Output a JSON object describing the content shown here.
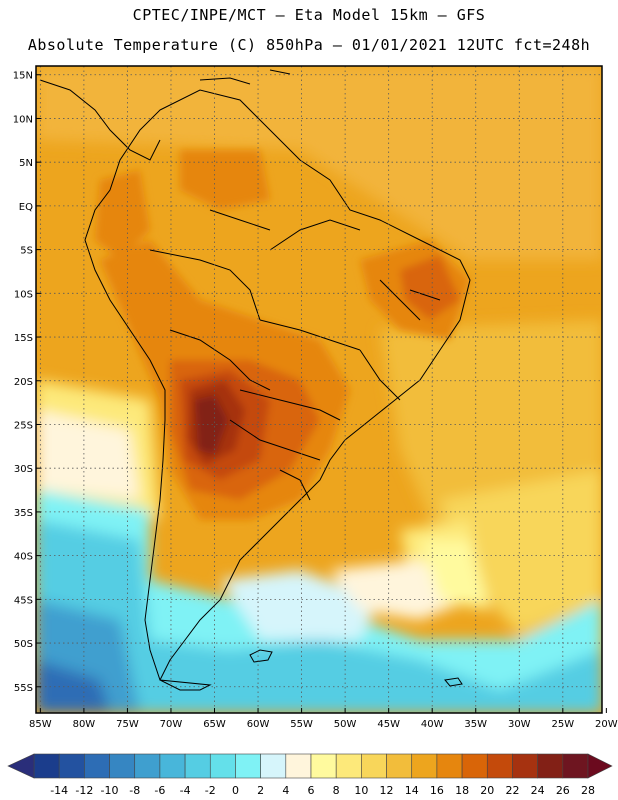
{
  "header": {
    "line1": "CPTEC/INPE/MCT –  Eta Model 15km – GFS",
    "line2": "Absolute Temperature (C) 850hPa – 01/01/2021 12UTC fct=248h"
  },
  "map": {
    "lat_labels": [
      "15N",
      "10N",
      "5N",
      "EQ",
      "5S",
      "10S",
      "15S",
      "20S",
      "25S",
      "30S",
      "35S",
      "40S",
      "45S",
      "50S",
      "55S"
    ],
    "lon_labels": [
      "85W",
      "80W",
      "75W",
      "70W",
      "65W",
      "60W",
      "55W",
      "50W",
      "45W",
      "40W",
      "35W",
      "30W",
      "25W",
      "20W"
    ],
    "lat_range": [
      -58,
      16
    ],
    "lon_range": [
      -85.5,
      -20.5
    ]
  },
  "colorbar": {
    "labels": [
      "-14",
      "-12",
      "-10",
      "-8",
      "-6",
      "-4",
      "-2",
      "0",
      "2",
      "4",
      "6",
      "8",
      "10",
      "12",
      "14",
      "16",
      "18",
      "20",
      "22",
      "24",
      "26",
      "28"
    ],
    "colors": [
      "#1b3d8c",
      "#2352a0",
      "#2d6db5",
      "#3686c2",
      "#3f9fcf",
      "#48b6da",
      "#55cde3",
      "#64e0ea",
      "#7ff2f5",
      "#d6f5fb",
      "#fff5dc",
      "#fffa9e",
      "#fde97a",
      "#f8d65a",
      "#f2bd3b",
      "#eda51e",
      "#e6860e",
      "#d96508",
      "#c44a0b",
      "#a63210",
      "#822016",
      "#6e1520"
    ]
  }
}
